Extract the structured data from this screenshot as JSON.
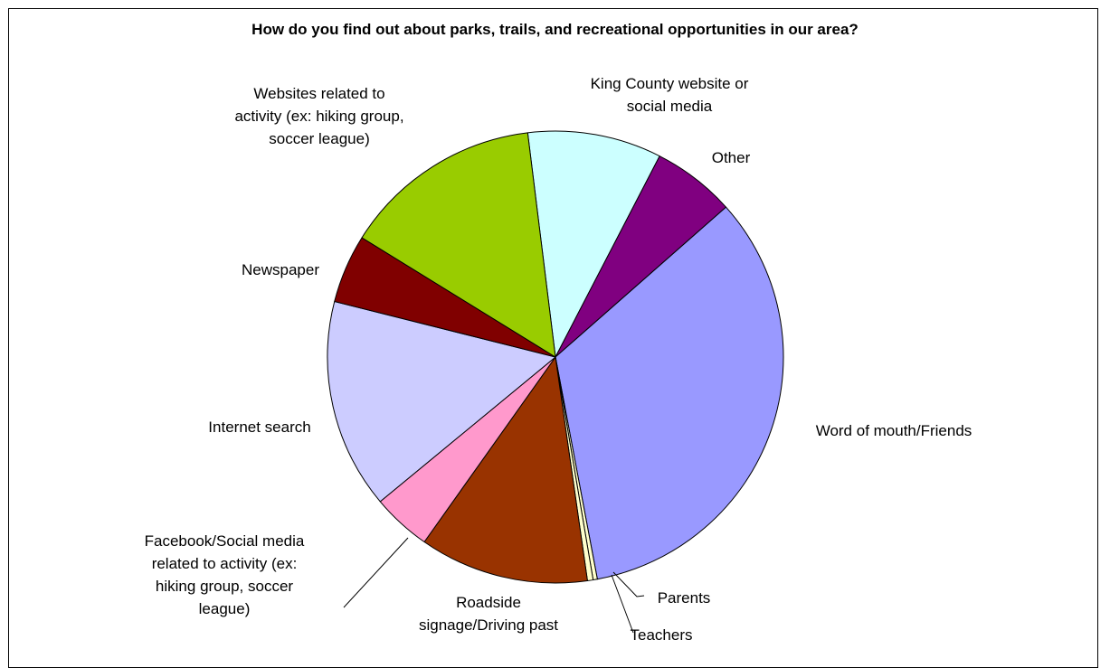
{
  "chart_data": {
    "type": "pie",
    "title": "How do you find out about parks, trails, and recreational opportunities in our area?",
    "slices": [
      {
        "label": "King County website or social media",
        "lines": [
          "King County website or",
          "social media"
        ],
        "value": 9.5,
        "color": "#ccffff"
      },
      {
        "label": "Other",
        "lines": [
          "Other"
        ],
        "value": 5.9,
        "color": "#800080"
      },
      {
        "label": "Word of mouth/Friends",
        "lines": [
          "Word of mouth/Friends"
        ],
        "value": 33.6,
        "color": "#9999ff"
      },
      {
        "label": "Parents",
        "lines": [
          "Parents"
        ],
        "value": 0.3,
        "color": "#ffffcc"
      },
      {
        "label": "Teachers",
        "lines": [
          "Teachers"
        ],
        "value": 0.4,
        "color": "#ffffcc"
      },
      {
        "label": "Roadside signage/Driving past",
        "lines": [
          "Roadside",
          "signage/Driving past"
        ],
        "value": 12.0,
        "color": "#993300"
      },
      {
        "label": "Facebook/Social media related to activity (ex: hiking group, soccer league)",
        "lines": [
          "Facebook/Social media",
          "related to activity (ex:",
          "hiking group, soccer",
          "league)"
        ],
        "value": 4.2,
        "color": "#ff99cc"
      },
      {
        "label": "Internet search",
        "lines": [
          "Internet search"
        ],
        "value": 15.0,
        "color": "#ccccff"
      },
      {
        "label": "Newspaper",
        "lines": [
          "Newspaper"
        ],
        "value": 4.9,
        "color": "#800000"
      },
      {
        "label": "Websites related to activity (ex: hiking group, soccer league)",
        "lines": [
          "Websites related to",
          "activity (ex: hiking group,",
          "soccer league)"
        ],
        "value": 14.2,
        "color": "#99cc00"
      }
    ],
    "legend": "none"
  }
}
